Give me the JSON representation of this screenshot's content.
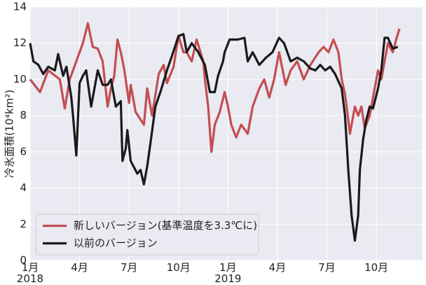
{
  "chart_data": {
    "type": "line",
    "ylabel": "冷氷面積(10⁴km²)",
    "xlim": [
      0,
      23.8
    ],
    "ylim": [
      0,
      14
    ],
    "xticks": [
      {
        "value": 0,
        "label": "1月\n2018"
      },
      {
        "value": 3,
        "label": "4月"
      },
      {
        "value": 6,
        "label": "7月"
      },
      {
        "value": 9,
        "label": "10月"
      },
      {
        "value": 12,
        "label": "1月\n2019"
      },
      {
        "value": 15,
        "label": "4月"
      },
      {
        "value": 18,
        "label": "7月"
      },
      {
        "value": 21,
        "label": "10月"
      }
    ],
    "yticks": [
      0,
      2,
      4,
      6,
      8,
      10,
      12,
      14
    ],
    "grid": true,
    "legend": "lower left",
    "series": [
      {
        "name": "新しいバージョン(基準温度を3.3℃に)",
        "color": "#c44e52",
        "x": [
          0,
          0.6,
          1.1,
          1.8,
          2.1,
          2.4,
          2.8,
          3.2,
          3.5,
          3.8,
          4.1,
          4.4,
          4.7,
          4.9,
          5.1,
          5.3,
          5.5,
          5.7,
          6.0,
          6.1,
          6.4,
          6.9,
          7.1,
          7.4,
          7.8,
          8.1,
          8.3,
          8.7,
          9.0,
          9.3,
          9.5,
          9.8,
          10.1,
          10.5,
          10.6,
          10.8,
          11.0,
          11.2,
          11.5,
          11.8,
          12.0,
          12.2,
          12.5,
          12.8,
          13.2,
          13.5,
          13.9,
          14.2,
          14.5,
          14.8,
          15.1,
          15.5,
          15.8,
          16.2,
          16.6,
          17.0,
          17.5,
          17.8,
          18.1,
          18.4,
          18.7,
          18.9,
          19.1,
          19.4,
          19.7,
          19.9,
          20.1,
          20.3,
          20.6,
          20.8,
          21.1,
          21.3,
          21.5,
          21.7,
          22.0,
          22.2,
          22.4
        ],
        "values": [
          10.0,
          9.3,
          10.5,
          10,
          8.4,
          10,
          11,
          12,
          13.1,
          11.8,
          11.7,
          11,
          8.5,
          9.5,
          10.2,
          12.2,
          11.5,
          10.6,
          8.7,
          9.7,
          8.2,
          7.5,
          9.5,
          8,
          10.3,
          10.8,
          9.8,
          10.7,
          12.4,
          11.5,
          11.5,
          11,
          12.2,
          11,
          10,
          8.5,
          6.0,
          7.5,
          8.2,
          9.3,
          8.5,
          7.5,
          6.8,
          7.5,
          7,
          8.5,
          9.5,
          10,
          9,
          10,
          11.5,
          9.7,
          10.5,
          11,
          10,
          10.8,
          11.5,
          11.8,
          11.5,
          12.2,
          11.5,
          10,
          9.2,
          7.0,
          8.5,
          8.0,
          8.5,
          7.3,
          8,
          9,
          10.5,
          10,
          11,
          12,
          11.5,
          12.2,
          12.8
        ]
      },
      {
        "name": "以前のバージョン",
        "color": "#1a1a1a",
        "x": [
          0,
          0.2,
          0.5,
          0.8,
          1.1,
          1.5,
          1.7,
          2.0,
          2.2,
          2.5,
          2.6,
          2.8,
          3.0,
          3.2,
          3.4,
          3.7,
          3.9,
          4.1,
          4.4,
          4.7,
          4.9,
          5.2,
          5.5,
          5.6,
          5.8,
          5.9,
          6.1,
          6.5,
          6.7,
          6.9,
          7.1,
          7.3,
          7.6,
          7.9,
          8.3,
          8.6,
          9.0,
          9.3,
          9.5,
          9.8,
          10.2,
          10.6,
          10.9,
          11.2,
          11.4,
          11.7,
          11.8,
          12.1,
          12.6,
          13.0,
          13.2,
          13.5,
          13.9,
          14.3,
          14.7,
          15.1,
          15.4,
          15.8,
          16.2,
          16.6,
          17.0,
          17.3,
          17.6,
          17.9,
          18.2,
          18.5,
          18.9,
          19.1,
          19.3,
          19.5,
          19.7,
          19.9,
          20.0,
          20.2,
          20.4,
          20.6,
          20.8,
          21.1,
          21.3,
          21.5,
          21.7,
          22.0,
          22.3
        ],
        "values": [
          12.0,
          11,
          10.8,
          10.3,
          10.7,
          10.5,
          11.4,
          10.2,
          10.7,
          9,
          8,
          5.8,
          9.8,
          10.2,
          10.5,
          8.5,
          9.5,
          10.5,
          9.7,
          9.7,
          10,
          8.5,
          8.8,
          5.5,
          6.2,
          7.2,
          5.5,
          4.8,
          5,
          4.2,
          5.2,
          6.5,
          8.5,
          9.3,
          10.5,
          11.3,
          12.4,
          12.5,
          11.5,
          12,
          11.5,
          10.8,
          9.3,
          9.3,
          10.2,
          11,
          11.5,
          12.2,
          12.2,
          12.3,
          11,
          11.5,
          10.8,
          11.2,
          11.5,
          12.3,
          12,
          11,
          11.2,
          11,
          10.6,
          10.5,
          10.8,
          10.5,
          10.7,
          10.3,
          9.5,
          8.0,
          5,
          2.5,
          1.1,
          2.5,
          5,
          6.7,
          7.8,
          8.5,
          8.4,
          9.5,
          10.5,
          12.3,
          12.3,
          11.7,
          11.8
        ]
      }
    ]
  }
}
